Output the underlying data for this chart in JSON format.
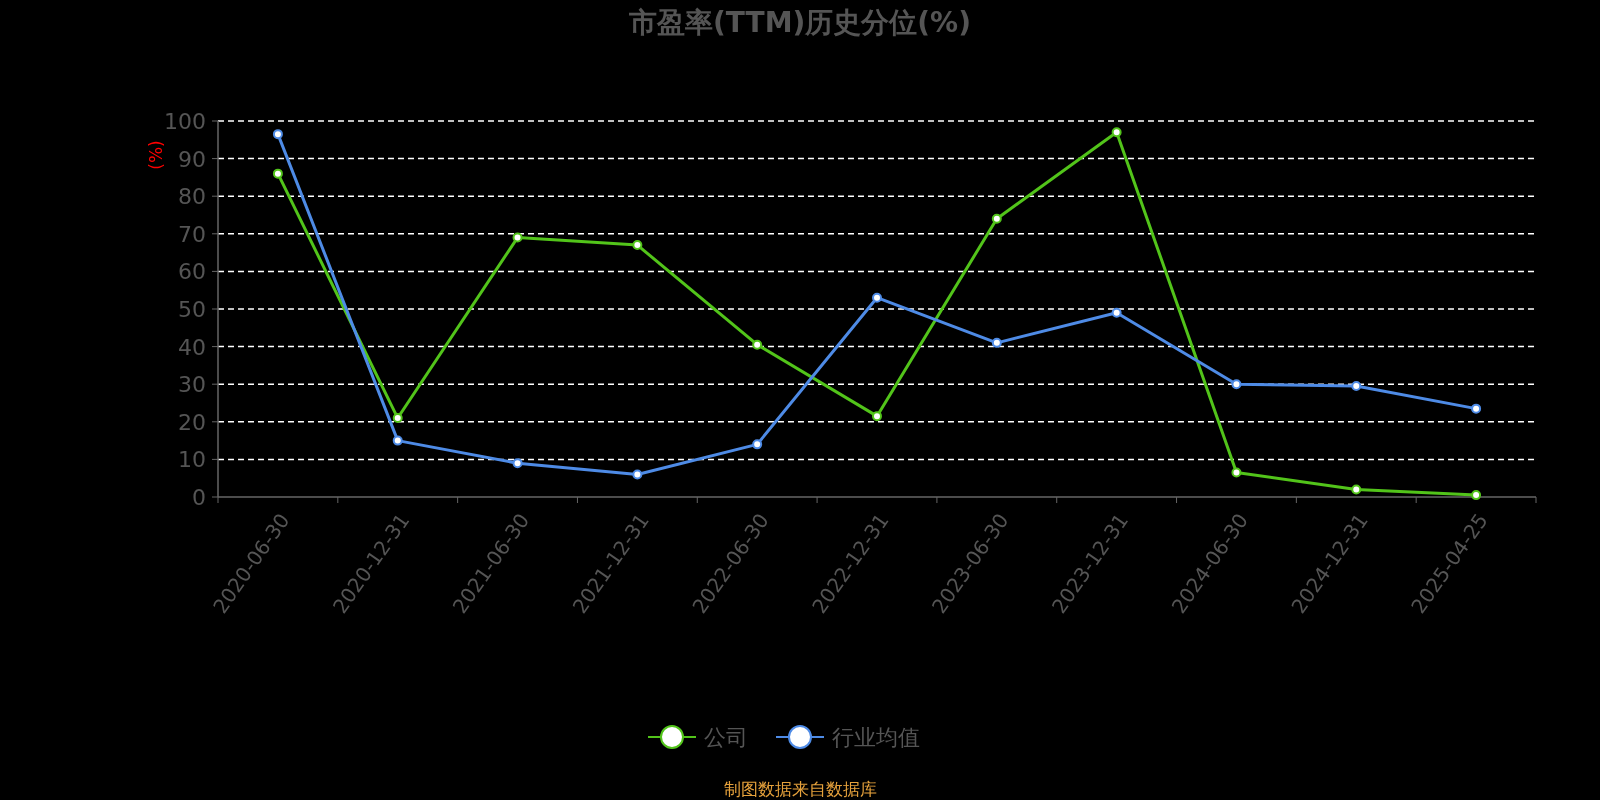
{
  "chart_data": {
    "type": "line",
    "title": "市盈率(TTM)历史分位(%)",
    "ylabel": "(%)",
    "categories": [
      "2020-06-30",
      "2020-12-31",
      "2021-06-30",
      "2021-12-31",
      "2022-06-30",
      "2022-12-31",
      "2023-06-30",
      "2023-12-31",
      "2024-06-30",
      "2024-12-31",
      "2025-04-25"
    ],
    "series": [
      {
        "name": "公司",
        "color": "#52c41a",
        "values": [
          86,
          21,
          69,
          67,
          40.5,
          21.5,
          74,
          97,
          6.5,
          2,
          0.5
        ]
      },
      {
        "name": "行业均值",
        "color": "#4e8be6",
        "values": [
          96.5,
          15,
          9,
          6,
          14,
          53,
          41,
          49,
          30,
          29.5,
          23.5
        ]
      }
    ],
    "ylim": [
      0,
      100
    ],
    "yticks": [
      0,
      10,
      20,
      30,
      40,
      50,
      60,
      70,
      80,
      90,
      100
    ],
    "grid": "y",
    "legend": "bottom",
    "marker": "circle",
    "line_style": "solid",
    "annotations": [
      "制图数据来自数据库"
    ]
  }
}
